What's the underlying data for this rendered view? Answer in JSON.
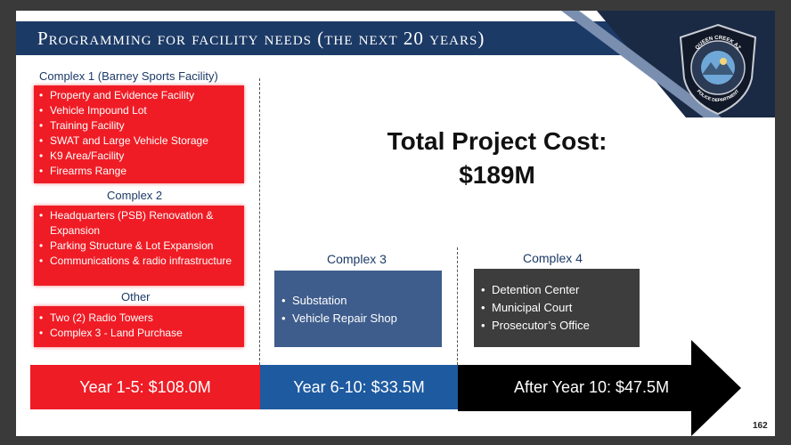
{
  "slide": {
    "title_part1": "Programming for facility needs",
    "title_part2": "(the next 20 years)",
    "page_number": "162"
  },
  "badge": {
    "top_text": "QUEEN CREEK AZ",
    "bottom_text": "POLICE DEPARTMENT"
  },
  "complex1": {
    "header": "Complex 1 (Barney Sports Facility)",
    "items": [
      "Property and Evidence Facility",
      "Vehicle Impound Lot",
      "Training Facility",
      "SWAT and Large Vehicle Storage",
      "K9 Area/Facility",
      "Firearms Range"
    ]
  },
  "complex2": {
    "header": "Complex 2",
    "items": [
      "Headquarters (PSB) Renovation & Expansion",
      "Parking Structure & Lot Expansion",
      "Communications & radio infrastructure"
    ]
  },
  "other": {
    "header": "Other",
    "items": [
      "Two (2) Radio Towers",
      "Complex 3 -  Land Purchase"
    ]
  },
  "total": {
    "line1": "Total Project Cost:",
    "line2": "$189M"
  },
  "complex3": {
    "header": "Complex 3",
    "items": [
      "Substation",
      "Vehicle Repair Shop"
    ]
  },
  "complex4": {
    "header": "Complex 4",
    "items": [
      "Detention Center",
      "Municipal Court",
      "Prosecutor’s Office"
    ]
  },
  "timeline": {
    "phase1": "Year 1-5: $108.0M",
    "phase2": "Year 6-10: $33.5M",
    "phase3": "After Year 10: $47.5M"
  },
  "colors": {
    "navy": "#1c3a66",
    "red": "#ef1c25",
    "steel_blue": "#3e5d8c",
    "dark_gray": "#3d3d3d",
    "phase1": "#ee1c25",
    "phase2": "#1e5aa0",
    "phase3": "#000000"
  }
}
